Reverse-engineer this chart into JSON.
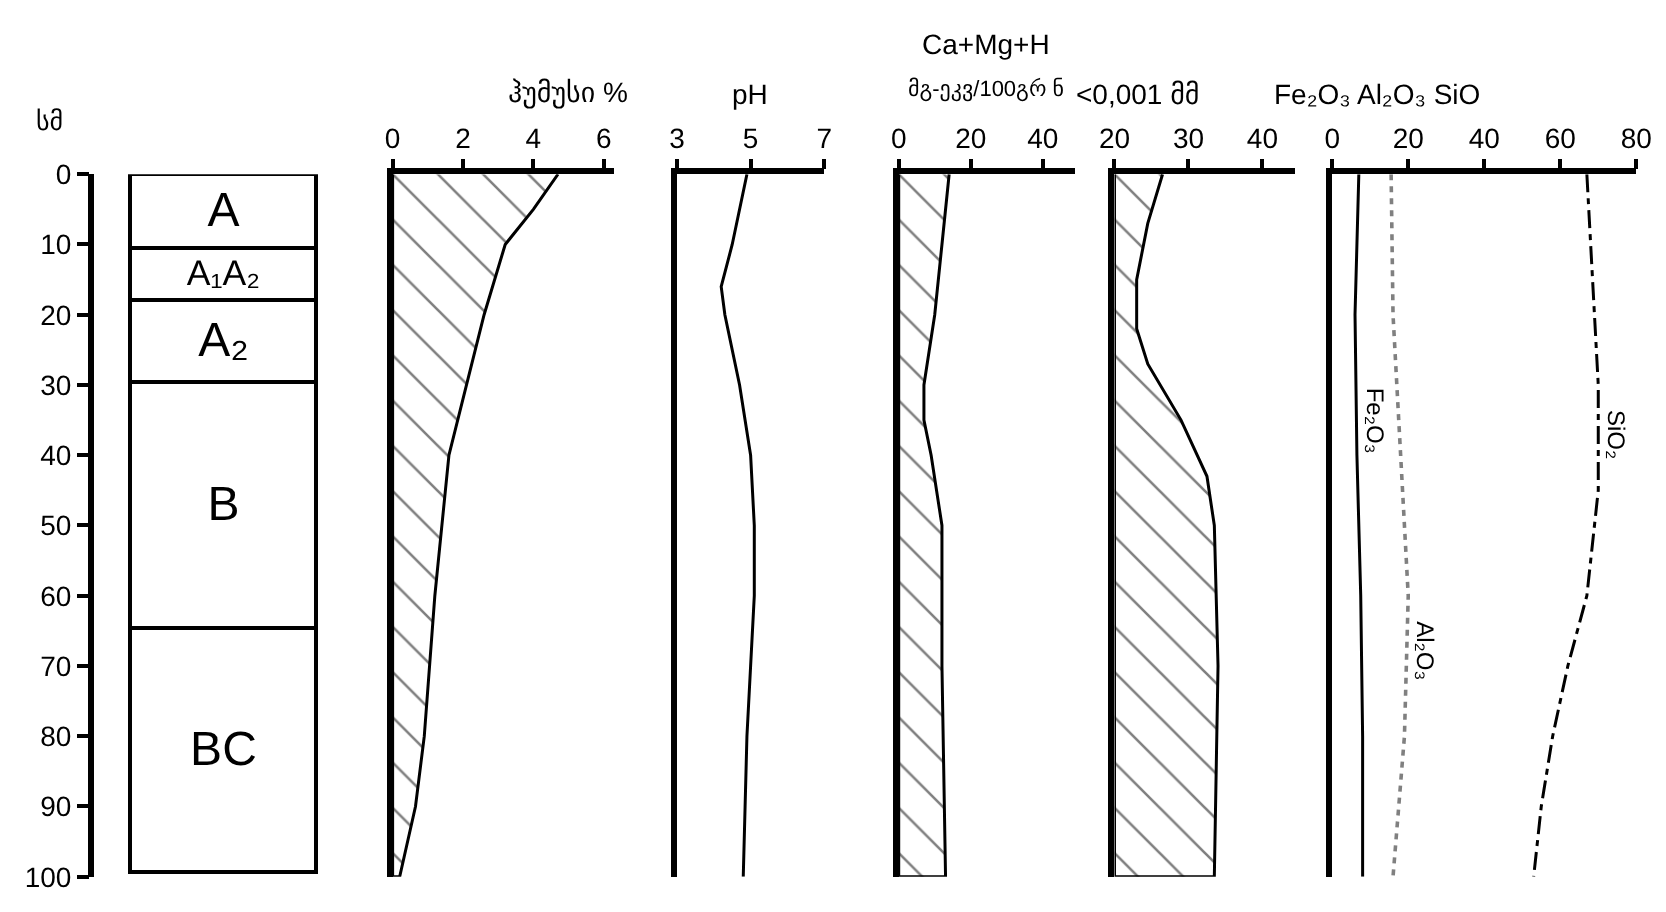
{
  "chart_data": [
    {
      "type": "bar",
      "stacked": true,
      "categories": [
        null
      ],
      "ylabel": "სმ",
      "ylim": [
        100,
        0
      ],
      "yticks": [
        0,
        10,
        20,
        30,
        40,
        50,
        60,
        70,
        80,
        90,
        100
      ],
      "tick_labels": "y",
      "legend": false,
      "series": [
        {
          "name": "A",
          "color": "#ffffff",
          "values": [
            10.5
          ]
        },
        {
          "name": "A₁A₂",
          "color": "#ffffff",
          "values": [
            7.5
          ]
        },
        {
          "name": "A₂",
          "color": "#ffffff",
          "values": [
            11.5
          ]
        },
        {
          "name": "B",
          "color": "#ffffff",
          "values": [
            35
          ]
        },
        {
          "name": "BC",
          "color": "#ffffff",
          "values": [
            35
          ]
        }
      ]
    },
    {
      "type": "area",
      "orientation": "horizontal",
      "title": "ჰუმუსი %",
      "xlim": [
        0,
        6.3
      ],
      "xticks": [
        0,
        2,
        4,
        6
      ],
      "ylim": [
        100,
        0
      ],
      "tick_labels": "x",
      "legend": false,
      "series": [
        {
          "color": "#000000",
          "x": [
            0,
            5,
            10,
            20,
            30,
            40,
            50,
            60,
            70,
            80,
            90,
            100
          ],
          "values": [
            4.7,
            4.0,
            3.2,
            2.6,
            2.1,
            1.6,
            1.4,
            1.2,
            1.05,
            0.9,
            0.65,
            0.2
          ]
        }
      ]
    },
    {
      "type": "line",
      "orientation": "horizontal",
      "title": "pH",
      "xlim": [
        3,
        7
      ],
      "xticks": [
        3,
        5,
        7
      ],
      "ylim": [
        100,
        0
      ],
      "tick_labels": "x",
      "legend": false,
      "line_style": "solid",
      "series": [
        {
          "color": "#000000",
          "x": [
            0,
            10,
            16,
            20,
            30,
            40,
            50,
            60,
            70,
            80,
            90,
            100
          ],
          "values": [
            4.9,
            4.5,
            4.2,
            4.3,
            4.7,
            5.0,
            5.1,
            5.1,
            5.0,
            4.9,
            4.85,
            4.8
          ]
        }
      ]
    },
    {
      "type": "area",
      "orientation": "horizontal",
      "title": "Ca+Mg+H",
      "subtitle": "მგ-ეკვ/100გრ ნ",
      "xlim": [
        0,
        49
      ],
      "xticks": [
        0,
        20,
        40
      ],
      "ylim": [
        100,
        0
      ],
      "tick_labels": "x",
      "legend": false,
      "series": [
        {
          "color": "#000000",
          "x": [
            0,
            10,
            20,
            30,
            35,
            40,
            50,
            70,
            100
          ],
          "values": [
            14,
            12,
            10,
            7,
            7,
            9,
            12,
            12,
            13
          ]
        }
      ]
    },
    {
      "type": "area",
      "orientation": "horizontal",
      "title": "<0,001 მმ",
      "xlim": [
        20,
        44.4
      ],
      "xticks": [
        20,
        30,
        40
      ],
      "ylim": [
        100,
        0
      ],
      "tick_labels": "x",
      "legend": false,
      "series": [
        {
          "color": "#000000",
          "x": [
            0,
            7,
            15,
            22,
            27,
            35,
            43,
            50,
            70,
            100
          ],
          "values": [
            26.5,
            24.5,
            23,
            23,
            24.5,
            29,
            32.5,
            33.5,
            34,
            33.5
          ]
        }
      ]
    },
    {
      "type": "line",
      "orientation": "horizontal",
      "title": "Fe₂O₃ Al₂O₃ SiO",
      "xlim": [
        0,
        80
      ],
      "xticks": [
        0,
        20,
        40,
        60,
        80
      ],
      "ylim": [
        100,
        0
      ],
      "tick_labels": "x",
      "legend": false,
      "series": [
        {
          "name": "Fe₂O₃",
          "color": "#000000",
          "line_style": "solid",
          "x": [
            0,
            20,
            40,
            60,
            80,
            100
          ],
          "values": [
            7,
            6,
            6.5,
            7.5,
            8,
            8
          ]
        },
        {
          "name": "Al₂O₃",
          "color": "#808080",
          "line_style": "dotted",
          "x": [
            0,
            20,
            40,
            60,
            80,
            100
          ],
          "values": [
            15.5,
            16,
            18,
            20,
            19,
            16
          ]
        },
        {
          "name": "SiO₂",
          "color": "#000000",
          "line_style": "dashdot",
          "x": [
            0,
            10,
            20,
            30,
            45,
            60,
            70,
            80,
            90,
            100
          ],
          "values": [
            67,
            68,
            69,
            70,
            70,
            67,
            62,
            58,
            55,
            53
          ]
        }
      ]
    }
  ]
}
